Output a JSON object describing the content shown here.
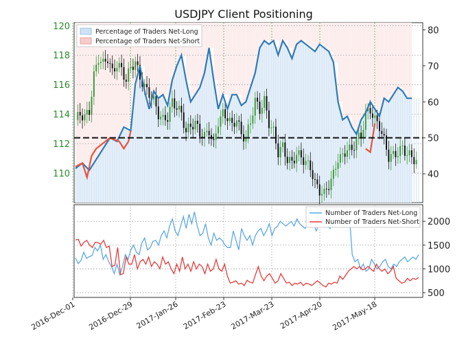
{
  "chart_data": [
    {
      "type": "candlestick+line",
      "title": "USDJPY Client Positioning",
      "x_tick_labels": [
        "2016-Dec-01",
        "2016-Dec-29",
        "2017-Jan-26",
        "2017-Feb-23",
        "2017-Mar-23",
        "2017-Apr-20",
        "2017-May-18"
      ],
      "left_axis": {
        "ticks": [
          110,
          112,
          114,
          116,
          118,
          120
        ],
        "range": [
          108,
          120.2
        ]
      },
      "right_axis": {
        "ticks": [
          40,
          50,
          60,
          70,
          80
        ],
        "range": [
          32,
          82
        ]
      },
      "reference_line": 50,
      "legend": [
        {
          "label": "Percentage of Traders Net-Long",
          "color": "#cfe2f5"
        },
        {
          "label": "Percentage of Traders Net-Short",
          "color": "#f7cccc"
        }
      ],
      "price_series": {
        "name": "USDJPY",
        "points": [
          [
            0,
            113.6
          ],
          [
            2,
            114.0
          ],
          [
            4,
            113.8
          ],
          [
            6,
            114.2
          ],
          [
            8,
            116.6
          ],
          [
            10,
            117.8
          ],
          [
            12,
            117.4
          ],
          [
            14,
            117.8
          ],
          [
            16,
            116.8
          ],
          [
            18,
            117.4
          ],
          [
            20,
            117.0
          ],
          [
            22,
            116.3
          ],
          [
            24,
            117.2
          ],
          [
            26,
            117.5
          ],
          [
            28,
            116.5
          ],
          [
            30,
            115.8
          ],
          [
            32,
            115.4
          ],
          [
            34,
            114.9
          ],
          [
            36,
            114.0
          ],
          [
            38,
            113.6
          ],
          [
            40,
            113.8
          ],
          [
            42,
            114.8
          ],
          [
            44,
            114.5
          ],
          [
            46,
            114.0
          ],
          [
            48,
            112.8
          ],
          [
            50,
            113.2
          ],
          [
            52,
            113.4
          ],
          [
            54,
            112.7
          ],
          [
            56,
            112.5
          ],
          [
            58,
            112.9
          ],
          [
            60,
            111.9
          ],
          [
            62,
            113.5
          ],
          [
            64,
            114.0
          ],
          [
            66,
            113.8
          ],
          [
            68,
            113.2
          ],
          [
            70,
            113.7
          ],
          [
            72,
            112.6
          ],
          [
            74,
            112.4
          ],
          [
            76,
            113.5
          ],
          [
            78,
            114.9
          ],
          [
            80,
            114.3
          ],
          [
            82,
            114.9
          ],
          [
            84,
            113.4
          ],
          [
            86,
            112.8
          ],
          [
            88,
            111.4
          ],
          [
            90,
            111.8
          ],
          [
            92,
            110.9
          ],
          [
            94,
            110.7
          ],
          [
            96,
            111.3
          ],
          [
            98,
            111.1
          ],
          [
            100,
            110.7
          ],
          [
            102,
            110.4
          ],
          [
            104,
            109.3
          ],
          [
            106,
            108.8
          ],
          [
            108,
            108.6
          ],
          [
            110,
            109.2
          ],
          [
            112,
            109.9
          ],
          [
            114,
            111.0
          ],
          [
            116,
            111.1
          ],
          [
            118,
            111.7
          ],
          [
            120,
            111.5
          ],
          [
            122,
            112.3
          ],
          [
            124,
            112.5
          ],
          [
            126,
            114.0
          ],
          [
            128,
            114.3
          ],
          [
            130,
            113.6
          ],
          [
            132,
            113.2
          ],
          [
            134,
            112.2
          ],
          [
            136,
            111.1
          ],
          [
            138,
            111.2
          ],
          [
            140,
            111.4
          ],
          [
            142,
            111.7
          ],
          [
            144,
            111.3
          ],
          [
            146,
            111.1
          ],
          [
            148,
            110.8
          ]
        ]
      },
      "net_long_pct": {
        "name": "Percentage of Traders Net-Long",
        "points": [
          [
            0,
            41.5
          ],
          [
            3,
            43
          ],
          [
            6,
            41
          ],
          [
            9,
            44
          ],
          [
            12,
            47
          ],
          [
            15,
            50
          ],
          [
            18,
            49
          ],
          [
            21,
            53
          ],
          [
            24,
            52
          ],
          [
            26,
            65
          ],
          [
            28,
            70
          ],
          [
            30,
            63
          ],
          [
            32,
            58
          ],
          [
            34,
            63
          ],
          [
            36,
            61
          ],
          [
            38,
            62
          ],
          [
            40,
            59
          ],
          [
            42,
            66
          ],
          [
            44,
            70
          ],
          [
            46,
            73
          ],
          [
            48,
            66
          ],
          [
            50,
            60
          ],
          [
            52,
            62
          ],
          [
            54,
            64
          ],
          [
            56,
            68
          ],
          [
            58,
            75
          ],
          [
            60,
            66
          ],
          [
            62,
            58
          ],
          [
            64,
            62
          ],
          [
            66,
            58
          ],
          [
            68,
            62
          ],
          [
            70,
            62
          ],
          [
            72,
            59
          ],
          [
            74,
            60
          ],
          [
            76,
            64
          ],
          [
            78,
            68
          ],
          [
            80,
            75
          ],
          [
            82,
            77
          ],
          [
            84,
            76
          ],
          [
            86,
            77
          ],
          [
            88,
            73
          ],
          [
            90,
            77
          ],
          [
            92,
            75
          ],
          [
            94,
            72
          ],
          [
            96,
            76
          ],
          [
            98,
            77
          ],
          [
            100,
            76
          ],
          [
            102,
            75
          ],
          [
            104,
            74
          ],
          [
            106,
            76
          ],
          [
            108,
            75
          ],
          [
            110,
            74
          ],
          [
            112,
            71
          ],
          [
            114,
            60
          ],
          [
            116,
            55
          ],
          [
            118,
            56
          ],
          [
            120,
            53
          ],
          [
            122,
            51
          ],
          [
            124,
            55
          ],
          [
            126,
            57
          ],
          [
            128,
            60
          ],
          [
            130,
            58
          ],
          [
            132,
            56
          ],
          [
            134,
            61
          ],
          [
            136,
            60
          ],
          [
            138,
            62
          ],
          [
            140,
            64
          ],
          [
            142,
            63
          ],
          [
            144,
            61
          ],
          [
            146,
            61
          ]
        ]
      },
      "net_short_segment": [
        [
          0,
          42
        ],
        [
          3,
          43
        ],
        [
          5,
          39
        ],
        [
          7,
          45
        ],
        [
          9,
          47
        ],
        [
          11,
          48
        ],
        [
          13,
          49
        ],
        [
          15,
          50
        ],
        [
          17,
          49.5
        ],
        [
          19,
          49
        ],
        [
          21,
          47
        ],
        [
          23,
          49
        ],
        [
          24,
          52
        ]
      ],
      "late_short_segment": [
        [
          126,
          47
        ],
        [
          128,
          46
        ],
        [
          130,
          54
        ]
      ]
    },
    {
      "type": "line",
      "legend": [
        {
          "label": "Number of Traders Net-Long",
          "color": "#5aa8e6"
        },
        {
          "label": "Number of Traders Net-Short",
          "color": "#e33b3b"
        }
      ],
      "right_axis": {
        "ticks": [
          500,
          1000,
          1500,
          2000
        ],
        "range": [
          400,
          2350
        ]
      },
      "series": [
        {
          "name": "Number of Traders Net-Long",
          "values": [
            1230,
            1110,
            1180,
            1350,
            1220,
            1260,
            1280,
            1450,
            1380,
            1500,
            1200,
            1300,
            1150,
            1050,
            900,
            1100,
            880,
            1050,
            1300,
            1200,
            1400,
            1500,
            1350,
            1300,
            1550,
            1650,
            1400,
            1450,
            1580,
            1600,
            1500,
            1700,
            1800,
            1650,
            1900,
            2050,
            1800,
            1700,
            1900,
            2100,
            1850,
            2150,
            1950,
            2200,
            1900,
            1700,
            1750,
            1950,
            1650,
            1500,
            1750,
            1600,
            1650,
            1600,
            1500,
            1450,
            1450,
            1800,
            1600,
            1400,
            1850,
            1700,
            1600,
            1700,
            1500,
            1700,
            1800,
            1850,
            1700,
            1800,
            1950,
            1700,
            1850,
            1900,
            2000,
            1950,
            1900,
            1950,
            2000,
            1900,
            2050,
            1950,
            1900,
            1850,
            1950,
            1900,
            1950,
            1800,
            1950,
            1900,
            2000,
            1900,
            1850,
            2000,
            1950,
            2000,
            1900,
            2050,
            2000,
            2100,
            1300,
            1150,
            1200,
            1000,
            1100,
            950,
            1000,
            1200,
            1100,
            1000,
            1050,
            1150,
            1200,
            1050,
            1000,
            1100,
            1050,
            1150,
            1200,
            1250,
            1150,
            1200,
            1250,
            1200,
            1300
          ]
        },
        {
          "name": "Number of Traders Net-Short",
          "values": [
            1610,
            1620,
            1480,
            1560,
            1600,
            1500,
            1450,
            1560,
            1550,
            1520,
            1600,
            1450,
            1480,
            1050,
            1080,
            1450,
            880,
            900,
            1250,
            1100,
            1100,
            1300,
            1000,
            1150,
            1200,
            1100,
            1250,
            1050,
            1150,
            1100,
            1000,
            1250,
            1100,
            1150,
            1000,
            900,
            1100,
            950,
            1250,
            1000,
            1100,
            950,
            1150,
            1000,
            1100,
            1050,
            900,
            1100,
            950,
            1000,
            1200,
            1000,
            950,
            1100,
            850,
            700,
            720,
            750,
            680,
            700,
            650,
            760,
            720,
            700,
            880,
            1050,
            850,
            750,
            850,
            900,
            800,
            700,
            750,
            900,
            800,
            700,
            720,
            650,
            700,
            680,
            720,
            650,
            700,
            680,
            650,
            700,
            750,
            700,
            650,
            620,
            700,
            680,
            720,
            700,
            850,
            780,
            860,
            950,
            1000,
            1050,
            1000,
            1050,
            980,
            1000,
            1050,
            1000,
            950,
            1100,
            1000,
            950,
            1000,
            900,
            950,
            1050,
            800,
            750,
            700,
            720,
            800,
            750,
            800,
            780,
            820
          ]
        }
      ]
    }
  ]
}
